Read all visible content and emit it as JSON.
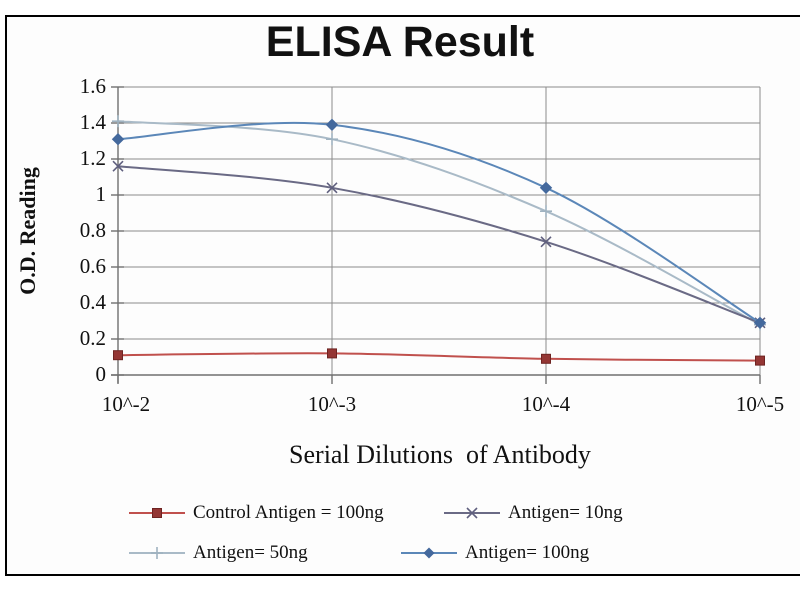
{
  "figure": {
    "title": "ELISA Result"
  },
  "chart_data": {
    "type": "line",
    "title": "ELISA Result",
    "xlabel": "Serial Dilutions  of Antibody",
    "ylabel": "O.D. Reading",
    "categories": [
      "10^-2",
      "10^-3",
      "10^-4",
      "10^-5"
    ],
    "ylim": [
      0,
      1.6
    ],
    "ytick_step": 0.2,
    "ytick_labels": [
      "1.6",
      "1.4",
      "1.2",
      "1",
      "0.8",
      "0.6",
      "0.4",
      "0.2",
      "0"
    ],
    "grid": true,
    "smooth_lines": true,
    "legend_position": "bottom",
    "series": [
      {
        "name": "Control Antigen = 100ng",
        "values": [
          0.11,
          0.12,
          0.09,
          0.08
        ],
        "line_color": "#c0504d",
        "marker": "square",
        "marker_color": "#943634"
      },
      {
        "name": "Antigen= 10ng",
        "values": [
          1.16,
          1.04,
          0.74,
          0.29
        ],
        "line_color": "#6a6a85",
        "marker": "x",
        "marker_color": "#5f5f7e"
      },
      {
        "name": "Antigen= 50ng",
        "values": [
          1.41,
          1.31,
          0.91,
          0.28
        ],
        "line_color": "#a9bac7",
        "marker": "plus",
        "marker_color": "#9fb2c0"
      },
      {
        "name": "Antigen= 100ng",
        "values": [
          1.31,
          1.39,
          1.04,
          0.29
        ],
        "line_color": "#5b87b8",
        "marker": "diamond",
        "marker_color": "#44699d"
      }
    ],
    "colors": {
      "grid": "#8c8c8c",
      "axis": "#707070",
      "border": "#000000",
      "background": "#ffffff",
      "text": "#111111"
    }
  }
}
